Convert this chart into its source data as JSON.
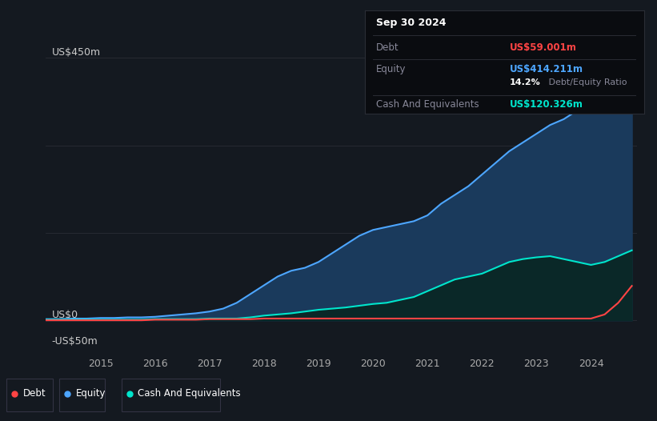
{
  "background_color": "#141920",
  "chart_bg": "#141920",
  "y_label_450": "US$450m",
  "y_label_0": "US$0",
  "y_label_neg50": "-US$50m",
  "x_labels": [
    "2015",
    "2016",
    "2017",
    "2018",
    "2019",
    "2020",
    "2021",
    "2022",
    "2023",
    "2024"
  ],
  "debt_color": "#ff4444",
  "equity_color": "#4da6ff",
  "cash_color": "#00e5cc",
  "equity_fill_color": "#1a3a5c",
  "cash_fill_color": "#0a2828",
  "grid_color": "#2a2d35",
  "tooltip_title": "Sep 30 2024",
  "tooltip_debt_label": "Debt",
  "tooltip_debt_value": "US$59.001m",
  "tooltip_equity_label": "Equity",
  "tooltip_equity_value": "US$414.211m",
  "tooltip_ratio_bold": "14.2%",
  "tooltip_ratio_normal": " Debt/Equity Ratio",
  "tooltip_cash_label": "Cash And Equivalents",
  "tooltip_cash_value": "US$120.326m",
  "ylim": [
    -50,
    470
  ],
  "years_numeric": [
    2014.0,
    2014.25,
    2014.5,
    2014.75,
    2015.0,
    2015.25,
    2015.5,
    2015.75,
    2016.0,
    2016.25,
    2016.5,
    2016.75,
    2017.0,
    2017.25,
    2017.5,
    2017.75,
    2018.0,
    2018.25,
    2018.5,
    2018.75,
    2019.0,
    2019.25,
    2019.5,
    2019.75,
    2020.0,
    2020.25,
    2020.5,
    2020.75,
    2021.0,
    2021.25,
    2021.5,
    2021.75,
    2022.0,
    2022.25,
    2022.5,
    2022.75,
    2023.0,
    2023.25,
    2023.5,
    2023.75,
    2024.0,
    2024.25,
    2024.5,
    2024.75
  ],
  "equity_values": [
    2,
    2,
    3,
    3,
    4,
    4,
    5,
    5,
    6,
    8,
    10,
    12,
    15,
    20,
    30,
    45,
    60,
    75,
    85,
    90,
    100,
    115,
    130,
    145,
    155,
    160,
    165,
    170,
    180,
    200,
    215,
    230,
    250,
    270,
    290,
    305,
    320,
    335,
    345,
    360,
    380,
    400,
    410,
    414
  ],
  "debt_values": [
    0,
    0,
    0,
    0,
    0,
    0,
    0,
    0,
    1,
    1,
    1,
    1,
    2,
    2,
    2,
    2,
    3,
    3,
    3,
    3,
    3,
    3,
    3,
    3,
    3,
    3,
    3,
    3,
    3,
    3,
    3,
    3,
    3,
    3,
    3,
    3,
    3,
    3,
    3,
    3,
    3,
    10,
    30,
    59
  ],
  "cash_values": [
    1,
    1,
    1,
    1,
    1,
    1,
    1,
    1,
    2,
    2,
    2,
    2,
    3,
    3,
    3,
    5,
    8,
    10,
    12,
    15,
    18,
    20,
    22,
    25,
    28,
    30,
    35,
    40,
    50,
    60,
    70,
    75,
    80,
    90,
    100,
    105,
    108,
    110,
    105,
    100,
    95,
    100,
    110,
    120
  ],
  "legend_items": [
    {
      "label": "Debt",
      "color": "#ff4444"
    },
    {
      "label": "Equity",
      "color": "#4da6ff"
    },
    {
      "label": "Cash And Equivalents",
      "color": "#00e5cc"
    }
  ]
}
